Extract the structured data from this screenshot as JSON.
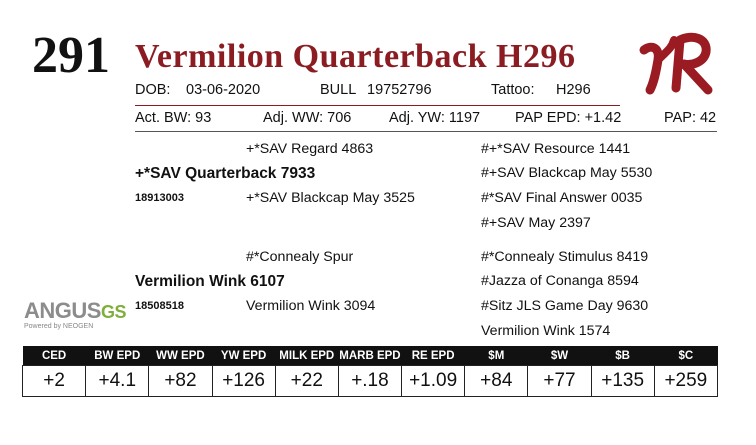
{
  "lot": "291",
  "name": "Vermilion Quarterback H296",
  "logo_text": "VR",
  "info": {
    "dob_label": "DOB:",
    "dob": "03-06-2020",
    "sex": "BULL",
    "reg": "19752796",
    "tattoo_label": "Tattoo:",
    "tattoo": "H296"
  },
  "stats": {
    "bw": "Act. BW: 93",
    "ww": "Adj. WW: 706",
    "yw": "Adj. YW: 1197",
    "pap_epd": "PAP EPD: +1.42",
    "pap": "PAP: 42"
  },
  "pedigree": {
    "sire_sire": "+*SAV Regard 4863",
    "sire": "+*SAV Quarterback 7933",
    "sire_reg": "18913003",
    "sire_dam": "+*SAV Blackcap May 3525",
    "ss_sire": "#+*SAV Resource 1441",
    "ss_dam": "#+SAV Blackcap May 5530",
    "sd_sire": "#*SAV Final Answer 0035",
    "sd_dam": "#+SAV May 2397",
    "dam_sire": "#*Connealy Spur",
    "dam": "Vermilion Wink 6107",
    "dam_reg": "18508518",
    "dam_dam": "Vermilion Wink 3094",
    "ds_sire": "#*Connealy Stimulus 8419",
    "ds_dam": "#Jazza of Conanga 8594",
    "dd_sire": "#Sitz JLS Game Day 9630",
    "dd_dam": "Vermilion Wink 1574"
  },
  "angus_logo": {
    "main": "ANGUS",
    "gs": "GS",
    "sub": "Powered by NEOGEN"
  },
  "epd": {
    "headers": [
      "CED",
      "BW EPD",
      "WW EPD",
      "YW EPD",
      "MILK EPD",
      "MARB EPD",
      "RE EPD",
      "$M",
      "$W",
      "$B",
      "$C"
    ],
    "values": [
      "+2",
      "+4.1",
      "+82",
      "+126",
      "+22",
      "+.18",
      "+1.09",
      "+84",
      "+77",
      "+135",
      "+259"
    ]
  },
  "colors": {
    "name": "#8a1c22",
    "logo": "#9b1b22",
    "header_bg": "#111111"
  }
}
